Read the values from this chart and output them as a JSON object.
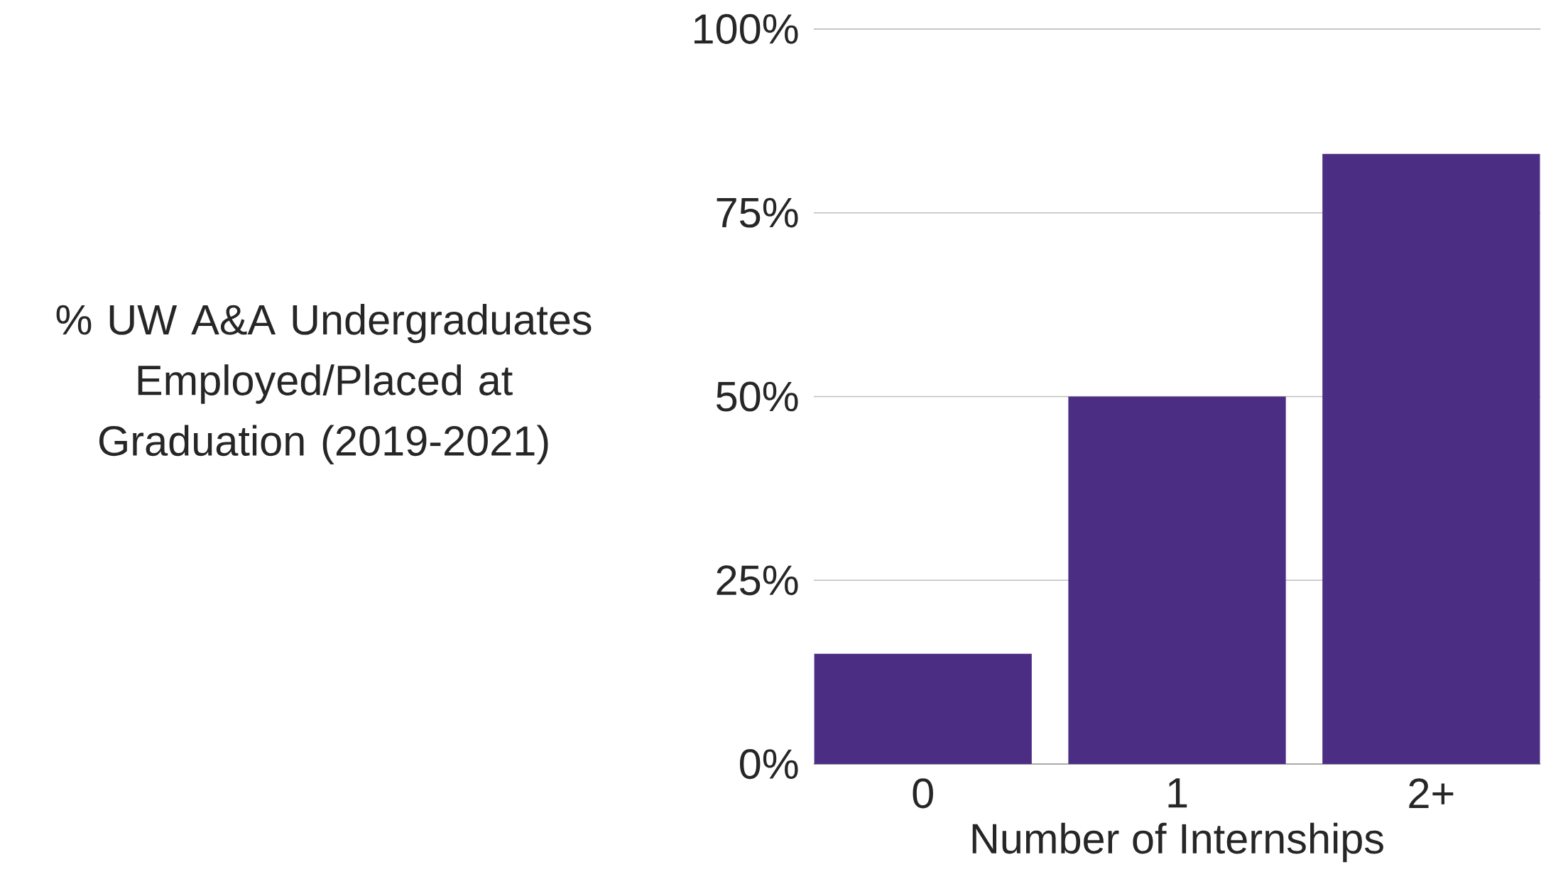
{
  "chart_data": {
    "type": "bar",
    "ylabel": "% UW A&A Undergraduates Employed/Placed at Graduation (2019-2021)",
    "xlabel": "Number of Internships",
    "categories": [
      "0",
      "1",
      "2+"
    ],
    "values": [
      15,
      50,
      83
    ],
    "color": "#4b2e83",
    "ylim": [
      0,
      100
    ],
    "yticks": [
      {
        "value": 0,
        "label": "0%"
      },
      {
        "value": 25,
        "label": "25%"
      },
      {
        "value": 50,
        "label": "50%"
      },
      {
        "value": 75,
        "label": "75%"
      },
      {
        "value": 100,
        "label": "100%"
      }
    ],
    "grid": "y"
  }
}
